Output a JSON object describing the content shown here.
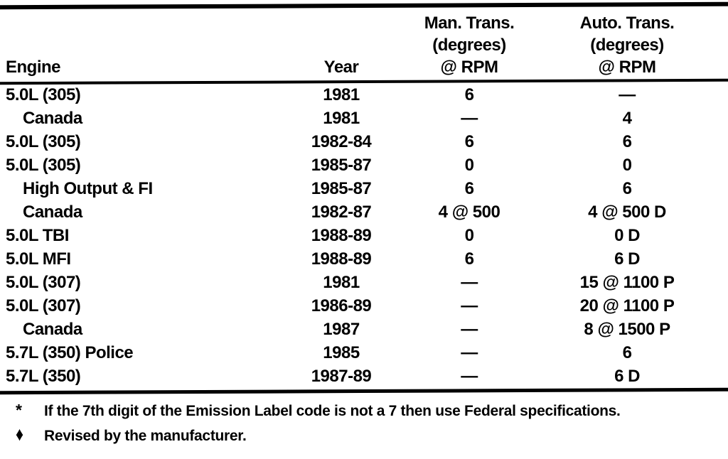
{
  "page": {
    "background": "#ffffff",
    "text_color": "#000000"
  },
  "table": {
    "columns": {
      "engine": {
        "label": "Engine"
      },
      "year": {
        "label": "Year"
      },
      "man_trans": {
        "line1": "Man. Trans.",
        "line2": "(degrees)",
        "line3": "@ RPM"
      },
      "auto_trans": {
        "line1": "Auto. Trans.",
        "line2": "(degrees)",
        "line3": "@ RPM"
      }
    },
    "rows": [
      {
        "engine": "5.0L (305)",
        "indent": false,
        "year": "1981",
        "man": "6",
        "auto": "—"
      },
      {
        "engine": "Canada",
        "indent": true,
        "year": "1981",
        "man": "—",
        "auto": "4"
      },
      {
        "engine": "5.0L (305)",
        "indent": false,
        "year": "1982-84",
        "man": "6",
        "auto": "6"
      },
      {
        "engine": "5.0L (305)",
        "indent": false,
        "year": "1985-87",
        "man": "0",
        "auto": "0"
      },
      {
        "engine": "High Output & FI",
        "indent": true,
        "year": "1985-87",
        "man": "6",
        "auto": "6"
      },
      {
        "engine": "Canada",
        "indent": true,
        "year": "1982-87",
        "man": "4 @ 500",
        "auto": "4 @ 500 D"
      },
      {
        "engine": "5.0L TBI",
        "indent": false,
        "year": "1988-89",
        "man": "0",
        "auto": "0 D"
      },
      {
        "engine": "5.0L MFI",
        "indent": false,
        "year": "1988-89",
        "man": "6",
        "auto": "6 D"
      },
      {
        "engine": "5.0L (307)",
        "indent": false,
        "year": "1981",
        "man": "—",
        "auto": "15 @ 1100 P"
      },
      {
        "engine": "5.0L (307)",
        "indent": false,
        "year": "1986-89",
        "man": "—",
        "auto": "20 @ 1100 P"
      },
      {
        "engine": "Canada",
        "indent": true,
        "year": "1987",
        "man": "—",
        "auto": "8 @ 1500 P"
      },
      {
        "engine": "5.7L (350) Police",
        "indent": false,
        "year": "1985",
        "man": "—",
        "auto": "6"
      },
      {
        "engine": "5.7L (350)",
        "indent": false,
        "year": "1987-89",
        "man": "—",
        "auto": "6 D"
      }
    ],
    "footnotes": [
      {
        "marker": "*",
        "text": "If the 7th digit of the Emission Label code is not a 7 then use Federal specifications."
      },
      {
        "marker": "♦",
        "text": "Revised by the manufacturer."
      }
    ]
  }
}
